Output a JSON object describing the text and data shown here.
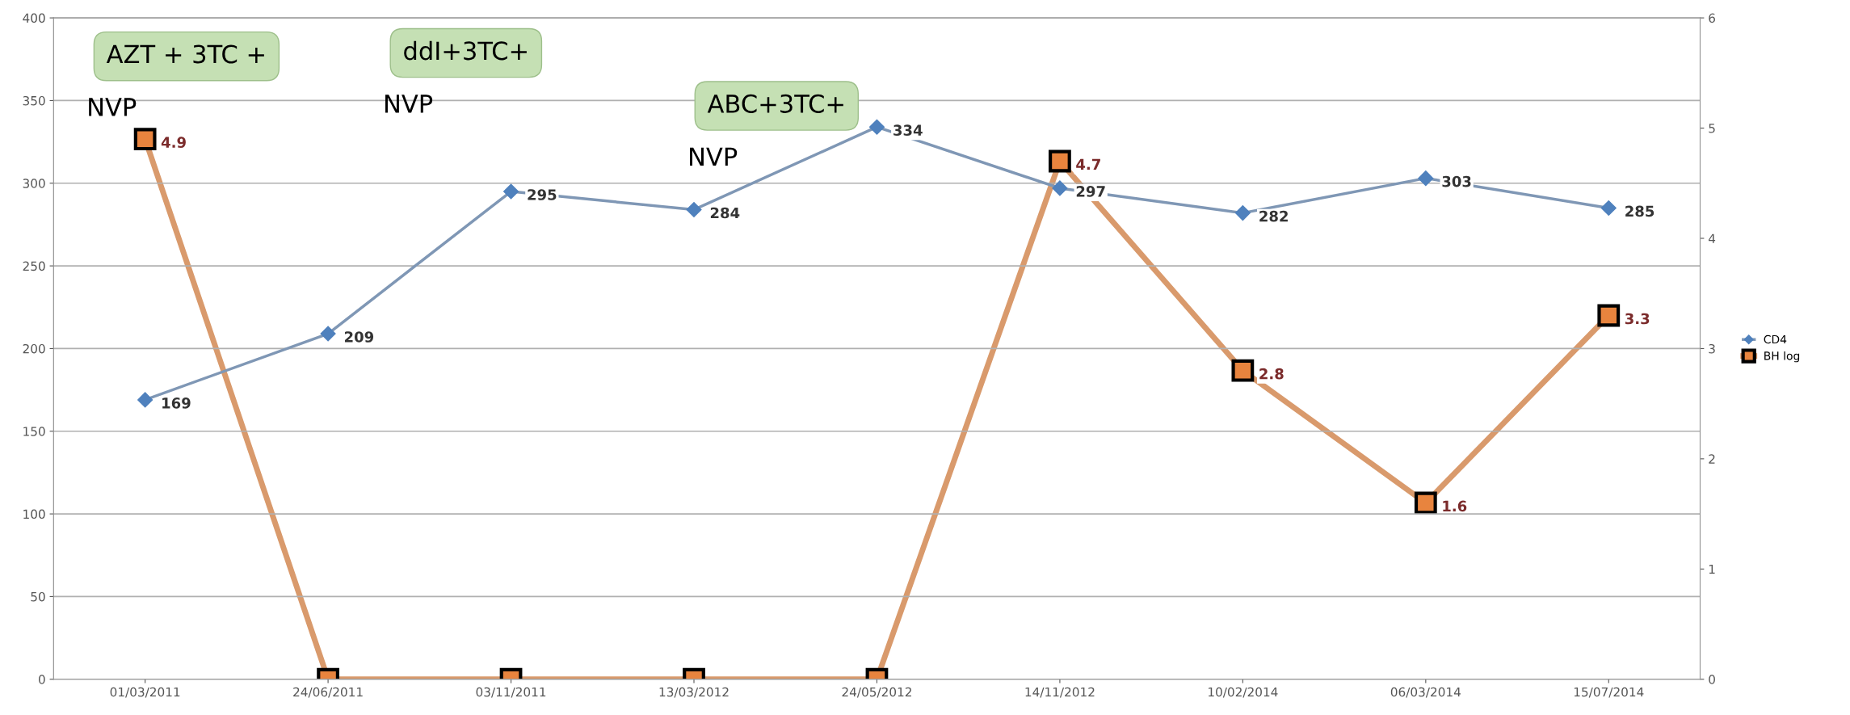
{
  "chart_data": {
    "type": "line",
    "categories": [
      "01/03/2011",
      "24/06/2011",
      "03/11/2011",
      "13/03/2012",
      "24/05/2012",
      "14/11/2012",
      "10/02/2014",
      "06/03/2014",
      "15/07/2014"
    ],
    "series": [
      {
        "name": "CD4",
        "color": "#7f97b5",
        "marker": "diamond",
        "values": [
          169,
          209,
          295,
          284,
          334,
          297,
          282,
          303,
          285
        ],
        "value_labels": [
          "169",
          "209",
          "295",
          "284",
          "334",
          "297",
          "282",
          "303",
          "285"
        ]
      },
      {
        "name": "BH log",
        "color": "#d99a6c",
        "marker": "square",
        "axis": "y2",
        "values": [
          4.9,
          0,
          0,
          0,
          0,
          4.7,
          2.8,
          1.6,
          3.3
        ],
        "value_labels": [
          "4.9",
          null,
          null,
          null,
          null,
          "4.7",
          "2.8",
          "1.6",
          "3.3"
        ]
      }
    ],
    "ylim": [
      0,
      400
    ],
    "yticks": [
      0,
      50,
      100,
      150,
      200,
      250,
      300,
      350,
      400
    ],
    "y2lim": [
      0,
      6
    ],
    "y2ticks": [
      0,
      1,
      2,
      3,
      4,
      5,
      6
    ],
    "grid": "y",
    "legend": "right",
    "annotations": [
      "AZT + 3TC +\nNVP",
      "ddI+3TC+\nNVP",
      "ABC+3TC+\nNVP"
    ]
  }
}
